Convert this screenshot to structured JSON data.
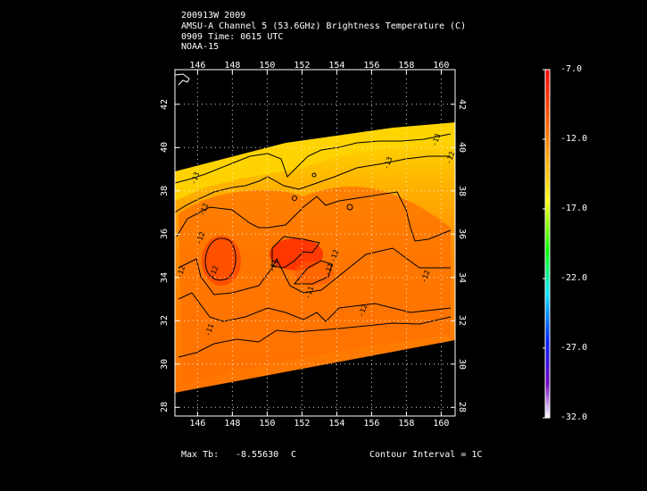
{
  "header": {
    "line1": "200913W 2009",
    "line2": "AMSU-A Channel 5 (53.6GHz) Brightness Temperature (C)",
    "line3": "0909 Time: 0615 UTC",
    "line4": "NOAA-15"
  },
  "map": {
    "lon_ticks": [
      "146",
      "148",
      "150",
      "152",
      "154",
      "156",
      "158",
      "160"
    ],
    "lat_ticks": [
      "28",
      "30",
      "32",
      "34",
      "36",
      "38",
      "40",
      "42"
    ],
    "lon_range": [
      144.7,
      160.8
    ],
    "lat_range": [
      27.6,
      43.6
    ],
    "contour_labels": [
      "-13",
      "-13",
      "-12",
      "-12",
      "-12",
      "-12",
      "-11",
      "-11",
      "-11",
      "-13",
      "-12",
      "-12",
      "-11",
      "-12",
      "-12"
    ]
  },
  "colorbar": {
    "labels": [
      "-7.0",
      "-12.0",
      "-17.0",
      "-22.0",
      "-27.0",
      "-32.0"
    ],
    "min": -32.0,
    "max": -7.0,
    "colors": [
      "#ff0000",
      "#ff7f00",
      "#ffff00",
      "#00ff00",
      "#00e0ff",
      "#0000ff",
      "#8000c0",
      "#ffffff"
    ]
  },
  "footer": {
    "max_label": "Max Tb:",
    "max_value": "-8.55630",
    "max_unit": "C",
    "contour_label": "Contour Interval = 1C"
  }
}
